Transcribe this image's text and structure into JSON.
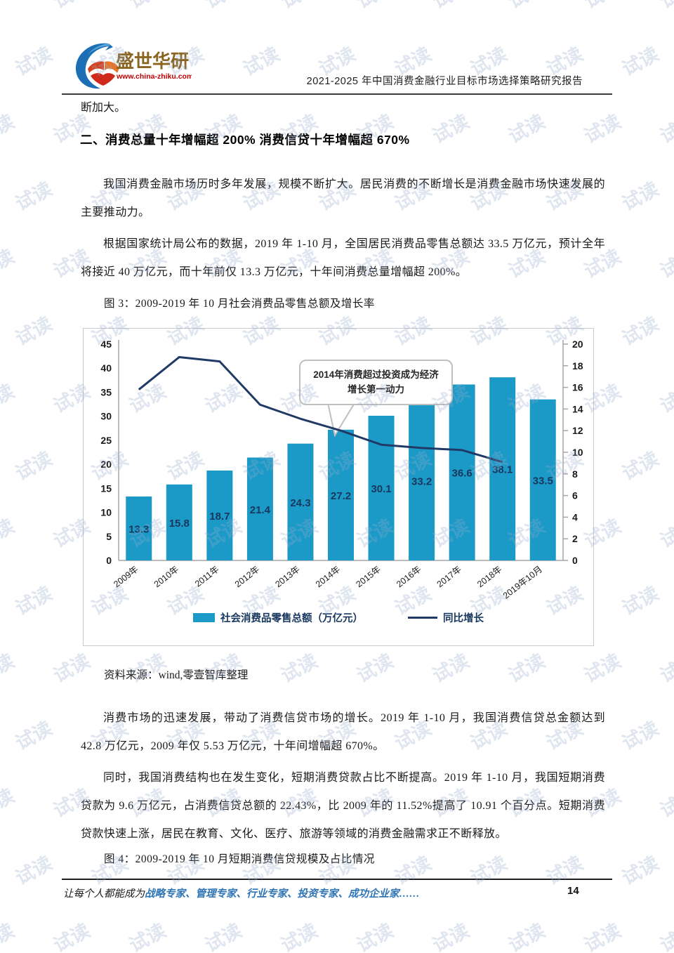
{
  "watermark": {
    "text": "试读"
  },
  "header": {
    "logo_name": "盛世华研",
    "logo_url": "www.china-zhiku.com",
    "report_title": "2021-2025 年中国消费金融行业目标市场选择策略研究报告"
  },
  "content": {
    "lead_text": "断加大。",
    "section_heading": "二、消费总量十年增幅超 200%  消费信贷十年增幅超 670%",
    "para1": "我国消费金融市场历时多年发展，规模不断扩大。居民消费的不断增长是消费金融市场快速发展的主要推动力。",
    "para2": "根据国家统计局公布的数据，2019 年 1-10 月，全国居民消费品零售总额达 33.5 万亿元，预计全年将接近 40 万亿元，而十年前仅 13.3 万亿元，十年间消费总量增幅超 200%。",
    "figure3_caption": "图 3：2009-2019 年 10 月社会消费品零售总额及增长率",
    "source_note": "资料来源：wind,零壹智库整理",
    "para3": "消费市场的迅速发展，带动了消费信贷市场的增长。2019 年 1-10 月，我国消费信贷总金额达到 42.8 万亿元，2009 年仅 5.53 万亿元，十年间增幅超 670%。",
    "para4": "同时，我国消费结构也在发生变化，短期消费贷款占比不断提高。2019 年 1-10 月，我国短期消费贷款为 9.6 万亿元，占消费信贷总额的 22.43%，比 2009 年的 11.52%提高了 10.91 个百分点。短期消费贷款快速上涨，居民在教育、文化、医疗、旅游等领域的消费金融需求正不断释放。",
    "figure4_caption": "图 4：2009-2019 年 10 月短期消费信贷规模及占比情况"
  },
  "chart_data": {
    "type": "bar",
    "subtype": "bar-line combo, dual axis",
    "categories": [
      "2009年",
      "2010年",
      "2011年",
      "2012年",
      "2013年",
      "2014年",
      "2015年",
      "2016年",
      "2017年",
      "2018年",
      "2019年10月"
    ],
    "series": [
      {
        "name": "社会消费品零售总额（万亿元）",
        "type": "bar",
        "axis": "left",
        "values": [
          13.3,
          15.8,
          18.7,
          21.4,
          24.3,
          27.2,
          30.1,
          33.2,
          36.6,
          38.1,
          33.5
        ],
        "color": "#1b9ac7"
      },
      {
        "name": "同比增长",
        "type": "line",
        "axis": "right",
        "values": [
          15.8,
          18.8,
          18.4,
          14.4,
          13.1,
          12.0,
          10.7,
          10.4,
          10.2,
          9.1,
          null
        ],
        "color": "#203a66"
      }
    ],
    "left_axis": {
      "min": 0,
      "max": 45,
      "step": 5
    },
    "right_axis": {
      "min": 0,
      "max": 20,
      "step": 2
    },
    "annotation": "2014年消费超过投资成为经济增长第一动力",
    "legend_position": "bottom",
    "grid": false,
    "data_label_color": "#17375e"
  },
  "footer": {
    "slogan_prefix": "让每个人都能成为",
    "slogan_highlight": "战略专家、管理专家、行业专家、投资专家、成功企业家……",
    "page_number": "14"
  }
}
